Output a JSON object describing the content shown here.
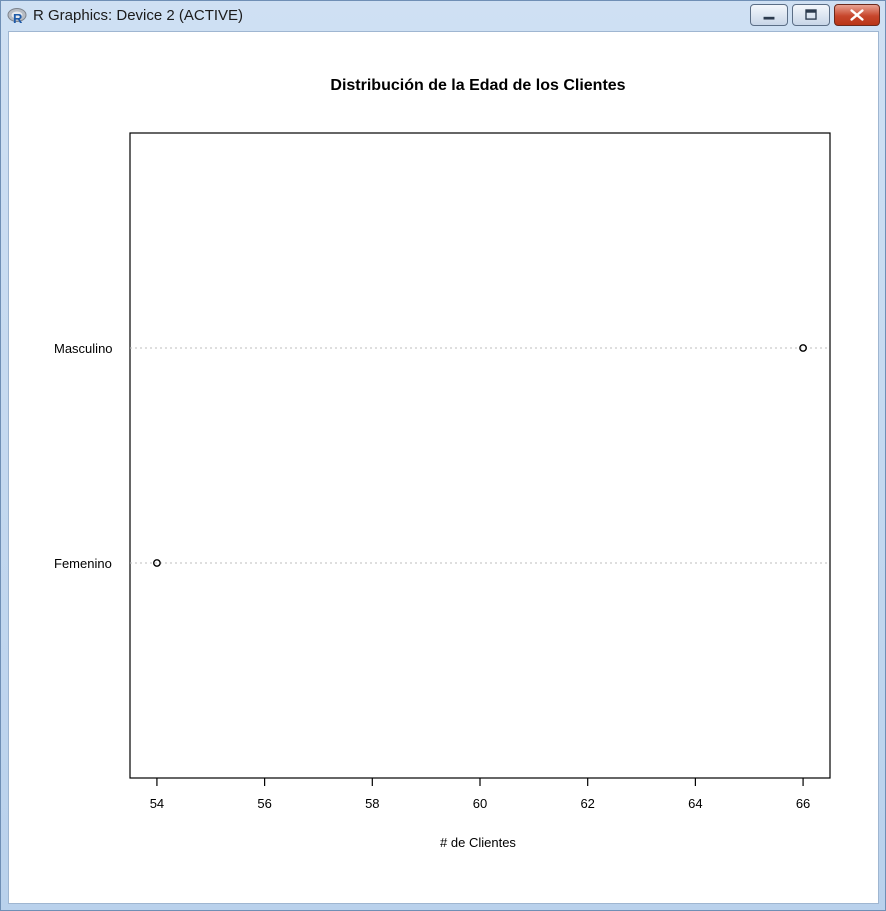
{
  "window": {
    "title": "R Graphics: Device 2 (ACTIVE)",
    "icon": "r-logo-icon",
    "controls": [
      "minimize-icon",
      "maximize-icon",
      "close-icon"
    ]
  },
  "chart_data": {
    "type": "scatter",
    "subtype": "dotchart",
    "title": "Distribución de la Edad de los Clientes",
    "xlabel": "# de Clientes",
    "ylabel": "",
    "categories": [
      "Femenino",
      "Masculino"
    ],
    "values": [
      54,
      66
    ],
    "xlim": [
      53.5,
      66.5
    ],
    "xticks": [
      54,
      56,
      58,
      60,
      62,
      64,
      66
    ],
    "grid": "dotted horizontal lines per category",
    "legend": "none",
    "colors": {
      "points": "#000000",
      "gridline": "#bebebe",
      "frame": "#000000"
    }
  }
}
